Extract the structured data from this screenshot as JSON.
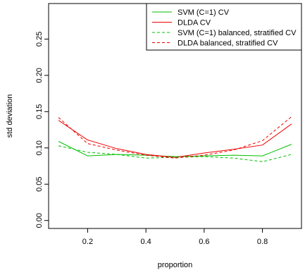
{
  "chart_data": {
    "type": "line",
    "xlabel": "proportion",
    "ylabel": "std deviation",
    "xlim": [
      0.066,
      0.934
    ],
    "ylim": [
      -0.011,
      0.299
    ],
    "xticks": [
      0.2,
      0.4,
      0.6,
      0.8
    ],
    "xtick_labels": [
      "0.2",
      "0.4",
      "0.6",
      "0.8"
    ],
    "yticks": [
      0.0,
      0.05,
      0.1,
      0.15,
      0.2,
      0.25
    ],
    "ytick_labels": [
      "0.00",
      "0.05",
      "0.10",
      "0.15",
      "0.20",
      "0.25"
    ],
    "grid": false,
    "legend_position": "top-right",
    "x": [
      0.1,
      0.2,
      0.3,
      0.4,
      0.5,
      0.6,
      0.7,
      0.8,
      0.9
    ],
    "series": [
      {
        "name": "SVM (C=1) CV",
        "color": "#00c000",
        "dash": "solid",
        "values": [
          0.109,
          0.089,
          0.091,
          0.09,
          0.088,
          0.089,
          0.09,
          0.089,
          0.105
        ]
      },
      {
        "name": "DLDA CV",
        "color": "#ee0000",
        "dash": "solid",
        "values": [
          0.138,
          0.111,
          0.099,
          0.091,
          0.087,
          0.093,
          0.098,
          0.104,
          0.133
        ]
      },
      {
        "name": "SVM (C=1) balanced, stratified CV",
        "color": "#00c000",
        "dash": "dashed",
        "values": [
          0.103,
          0.094,
          0.091,
          0.086,
          0.087,
          0.088,
          0.086,
          0.081,
          0.091
        ]
      },
      {
        "name": "DLDA balanced, stratified CV",
        "color": "#ee0000",
        "dash": "dashed",
        "values": [
          0.142,
          0.106,
          0.097,
          0.09,
          0.086,
          0.09,
          0.097,
          0.11,
          0.143
        ]
      }
    ]
  }
}
